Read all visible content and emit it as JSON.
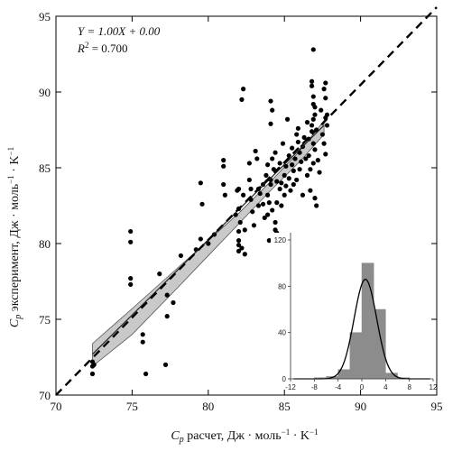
{
  "chart_data": [
    {
      "type": "scatter",
      "xlabel_main": "C",
      "xlabel_sub": "p",
      "xlabel_rest": " расчет, Дж · моль",
      "xlabel_sup": "−1",
      "xlabel_end": " · K",
      "xlabel_sup2": "−1",
      "ylabel_main": "C",
      "ylabel_sub": "p",
      "ylabel_rest": " эксперимент, Дж · моль",
      "ylabel_sup": "−1",
      "ylabel_end": " · K",
      "ylabel_sup2": "−1",
      "xlim": [
        70,
        95
      ],
      "ylim": [
        70,
        95
      ],
      "xticks": [
        "70",
        "75",
        "80",
        "85",
        "90",
        "95"
      ],
      "yticks": [
        "70",
        "75",
        "80",
        "85",
        "90",
        "95"
      ],
      "annotations": {
        "equation": "Y = 1.00X + 0.00",
        "r2_label": "R",
        "r2_sup": "2",
        "r2_value": " = 0.700"
      },
      "identity_line": {
        "x": [
          70,
          95
        ],
        "y": [
          70,
          95
        ]
      },
      "fit_line": {
        "x": [
          72.4,
          87.6
        ],
        "y": [
          72.7,
          87.8
        ]
      },
      "confidence_band": {
        "upper": [
          [
            72.4,
            73.4
          ],
          [
            75,
            75.7
          ],
          [
            78,
            78.4
          ],
          [
            80,
            80.2
          ],
          [
            82,
            82.0
          ],
          [
            84,
            84.0
          ],
          [
            86,
            86.1
          ],
          [
            87.6,
            88.1
          ]
        ],
        "lower": [
          [
            72.4,
            71.9
          ],
          [
            75,
            74.0
          ],
          [
            78,
            77.1
          ],
          [
            80,
            79.2
          ],
          [
            82,
            81.3
          ],
          [
            84,
            83.4
          ],
          [
            86,
            85.4
          ],
          [
            87.6,
            87.2
          ]
        ]
      },
      "points": [
        [
          72.4,
          72.2
        ],
        [
          72.4,
          71.9
        ],
        [
          72.5,
          72.0
        ],
        [
          72.4,
          71.4
        ],
        [
          74.9,
          80.8
        ],
        [
          74.9,
          80.1
        ],
        [
          74.9,
          77.7
        ],
        [
          74.9,
          77.3
        ],
        [
          75.7,
          74.0
        ],
        [
          75.7,
          73.5
        ],
        [
          75.9,
          71.4
        ],
        [
          76.8,
          78.0
        ],
        [
          77.2,
          72.0
        ],
        [
          77.3,
          76.6
        ],
        [
          77.3,
          75.2
        ],
        [
          77.7,
          76.1
        ],
        [
          78.2,
          79.2
        ],
        [
          79.2,
          79.6
        ],
        [
          79.5,
          84.0
        ],
        [
          79.6,
          82.6
        ],
        [
          79.5,
          80.3
        ],
        [
          80.0,
          80.0
        ],
        [
          80.4,
          80.6
        ],
        [
          81.0,
          85.5
        ],
        [
          81.0,
          85.1
        ],
        [
          81.0,
          83.9
        ],
        [
          81.1,
          83.2
        ],
        [
          81.8,
          81.9
        ],
        [
          81.9,
          83.5
        ],
        [
          82.0,
          82.3
        ],
        [
          82.0,
          80.8
        ],
        [
          82.0,
          80.2
        ],
        [
          82.0,
          79.9
        ],
        [
          82.0,
          79.5
        ],
        [
          82.0,
          83.6
        ],
        [
          82.1,
          81.4
        ],
        [
          82.2,
          79.7
        ],
        [
          82.3,
          83.2
        ],
        [
          82.4,
          79.3
        ],
        [
          82.4,
          80.9
        ],
        [
          82.2,
          89.5
        ],
        [
          82.3,
          90.2
        ],
        [
          82.7,
          84.2
        ],
        [
          82.8,
          83.6
        ],
        [
          82.9,
          82.1
        ],
        [
          83.0,
          81.2
        ],
        [
          82.8,
          82.9
        ],
        [
          83.1,
          86.1
        ],
        [
          83.2,
          85.6
        ],
        [
          83.3,
          83.6
        ],
        [
          83.3,
          82.5
        ],
        [
          83.4,
          83.3
        ],
        [
          83.6,
          83.9
        ],
        [
          83.6,
          82.6
        ],
        [
          83.7,
          81.7
        ],
        [
          83.8,
          84.5
        ],
        [
          83.9,
          83.2
        ],
        [
          83.9,
          81.9
        ],
        [
          84.0,
          80.2
        ],
        [
          84.0,
          82.7
        ],
        [
          84.1,
          84.2
        ],
        [
          84.1,
          83.9
        ],
        [
          84.2,
          88.8
        ],
        [
          84.1,
          89.4
        ],
        [
          84.1,
          87.9
        ],
        [
          84.2,
          85.6
        ],
        [
          84.3,
          84.9
        ],
        [
          84.2,
          82.2
        ],
        [
          84.4,
          81.4
        ],
        [
          84.4,
          80.9
        ],
        [
          84.5,
          82.7
        ],
        [
          84.5,
          84.1
        ],
        [
          84.4,
          86.0
        ],
        [
          84.5,
          80.7
        ],
        [
          84.6,
          78.0
        ],
        [
          84.7,
          85.3
        ],
        [
          84.7,
          83.6
        ],
        [
          84.8,
          84.0
        ],
        [
          84.8,
          82.5
        ],
        [
          84.9,
          86.6
        ],
        [
          85.0,
          84.5
        ],
        [
          85.1,
          85.1
        ],
        [
          85.0,
          83.2
        ],
        [
          85.1,
          83.8
        ],
        [
          85.2,
          88.2
        ],
        [
          85.3,
          85.8
        ],
        [
          85.3,
          84.3
        ],
        [
          85.4,
          83.5
        ],
        [
          85.5,
          85.2
        ],
        [
          85.5,
          86.3
        ],
        [
          85.6,
          83.9
        ],
        [
          85.6,
          84.8
        ],
        [
          85.7,
          85.6
        ],
        [
          85.8,
          84.2
        ],
        [
          85.8,
          87.2
        ],
        [
          85.9,
          86.7
        ],
        [
          86.0,
          86.0
        ],
        [
          86.0,
          84.9
        ],
        [
          86.1,
          85.4
        ],
        [
          86.2,
          86.4
        ],
        [
          86.2,
          83.2
        ],
        [
          86.3,
          87.0
        ],
        [
          86.4,
          85.6
        ],
        [
          86.5,
          88.0
        ],
        [
          86.5,
          84.5
        ],
        [
          86.6,
          86.9
        ],
        [
          86.6,
          85.8
        ],
        [
          86.7,
          84.9
        ],
        [
          86.7,
          83.5
        ],
        [
          86.8,
          87.4
        ],
        [
          86.8,
          87.8
        ],
        [
          86.9,
          86.6
        ],
        [
          86.9,
          85.3
        ],
        [
          87.0,
          88.5
        ],
        [
          87.0,
          89.0
        ],
        [
          86.8,
          90.4
        ],
        [
          86.8,
          90.7
        ],
        [
          86.9,
          92.8
        ],
        [
          86.9,
          89.7
        ],
        [
          86.9,
          89.2
        ],
        [
          86.9,
          88.2
        ],
        [
          87.0,
          86.2
        ],
        [
          87.1,
          87.5
        ],
        [
          87.2,
          85.5
        ],
        [
          87.3,
          84.7
        ],
        [
          87.4,
          88.8
        ],
        [
          87.5,
          87.2
        ],
        [
          87.6,
          86.6
        ],
        [
          87.7,
          88.3
        ],
        [
          87.6,
          90.2
        ],
        [
          87.7,
          90.6
        ],
        [
          87.7,
          89.6
        ],
        [
          87.7,
          85.9
        ],
        [
          87.8,
          87.8
        ],
        [
          87.8,
          88.5
        ],
        [
          87.0,
          83.0
        ],
        [
          87.1,
          82.5
        ],
        [
          85.9,
          87.6
        ],
        [
          83.9,
          85.2
        ],
        [
          82.7,
          85.3
        ]
      ]
    },
    {
      "type": "histogram",
      "xticks": [
        "-12",
        "-8",
        "-4",
        "0",
        "4",
        "8",
        "12"
      ],
      "yticks": [
        "0",
        "40",
        "80",
        "120"
      ],
      "xlim": [
        -12,
        12
      ],
      "ylim": [
        0,
        120
      ],
      "bins": [
        {
          "x0": -8,
          "x1": -6,
          "value": 1
        },
        {
          "x0": -6,
          "x1": -4,
          "value": 2
        },
        {
          "x0": -4,
          "x1": -2,
          "value": 8
        },
        {
          "x0": -2,
          "x1": 0,
          "value": 40
        },
        {
          "x0": 0,
          "x1": 2,
          "value": 100
        },
        {
          "x0": 2,
          "x1": 4,
          "value": 60
        },
        {
          "x0": 4,
          "x1": 6,
          "value": 5
        },
        {
          "x0": 6,
          "x1": 8,
          "value": 1
        }
      ],
      "normal_curve": {
        "mean": 0.6,
        "sd": 1.9,
        "peak": 86
      }
    }
  ]
}
